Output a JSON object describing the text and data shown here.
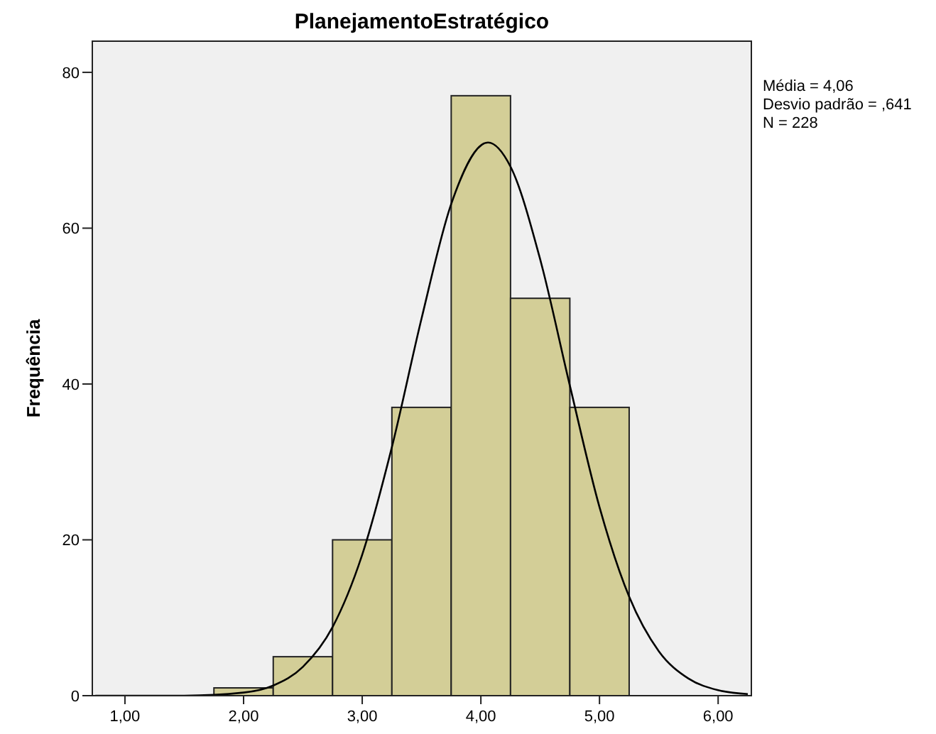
{
  "chart_data": {
    "type": "histogram",
    "title": "PlanejamentoEstratégico",
    "ylabel": "Frequência",
    "bins": [
      1.75,
      2.25,
      2.75,
      3.25,
      3.75,
      4.25,
      4.75,
      5.25
    ],
    "values": [
      1,
      5,
      20,
      37,
      77,
      51,
      37
    ],
    "color": "#d3ce97",
    "series": [
      {
        "type": "line",
        "color": "#000000",
        "x": [
          0.75,
          1.5,
          2.0,
          2.25,
          2.5,
          2.75,
          3.0,
          3.25,
          3.5,
          3.75,
          4.06,
          4.25,
          4.5,
          4.75,
          5.0,
          5.25,
          5.5,
          5.75,
          6.0,
          6.25
        ],
        "values": [
          0,
          0,
          0.4,
          1.3,
          3.7,
          8.8,
          18.1,
          31.9,
          48.4,
          63.1,
          71.0,
          67.9,
          56.0,
          39.8,
          24.2,
          12.7,
          5.7,
          2.2,
          0.7,
          0.2
        ]
      }
    ],
    "xlim": [
      0.725,
      6.28
    ],
    "ylim": [
      0,
      84
    ],
    "xticks": [
      {
        "value": 1,
        "label": "1,00"
      },
      {
        "value": 2,
        "label": "2,00"
      },
      {
        "value": 3,
        "label": "3,00"
      },
      {
        "value": 4,
        "label": "4,00"
      },
      {
        "value": 5,
        "label": "5,00"
      },
      {
        "value": 6,
        "label": "6,00"
      }
    ],
    "yticks": [
      0,
      20,
      40,
      60,
      80
    ],
    "grid": false,
    "annotations": [
      "Média = 4,06",
      "Desvio padrão = ,641",
      "N = 228"
    ]
  }
}
